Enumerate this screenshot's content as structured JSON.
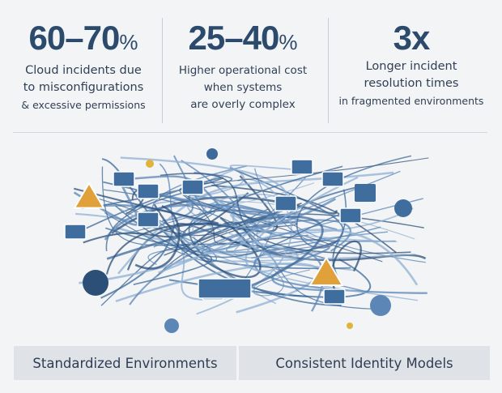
{
  "stats": [
    {
      "value": "60–70",
      "unit": "%",
      "lines": [
        "Cloud incidents due",
        "to misconfigurations"
      ],
      "small": "& excessive permissions"
    },
    {
      "value": "25–40",
      "unit": "%",
      "lines": [
        "Higher operational cost",
        "when systems"
      ],
      "small": "are overly complex"
    },
    {
      "value": "3x",
      "unit": "",
      "lines": [
        "Longer incident",
        "resolution times"
      ],
      "small": "in fragmented environments"
    }
  ],
  "bottom": [
    "Standardized Environments",
    "Consistent Identity Models"
  ],
  "colors": {
    "heading": "#2c4a6c",
    "line": "#3d6a9a",
    "warning": "#e0a03a",
    "panel": "#dfe3e8"
  },
  "icons": [
    "warning-icon",
    "lock-icon",
    "gear-icon",
    "window-icon",
    "user-icon",
    "checkmark-icon"
  ]
}
